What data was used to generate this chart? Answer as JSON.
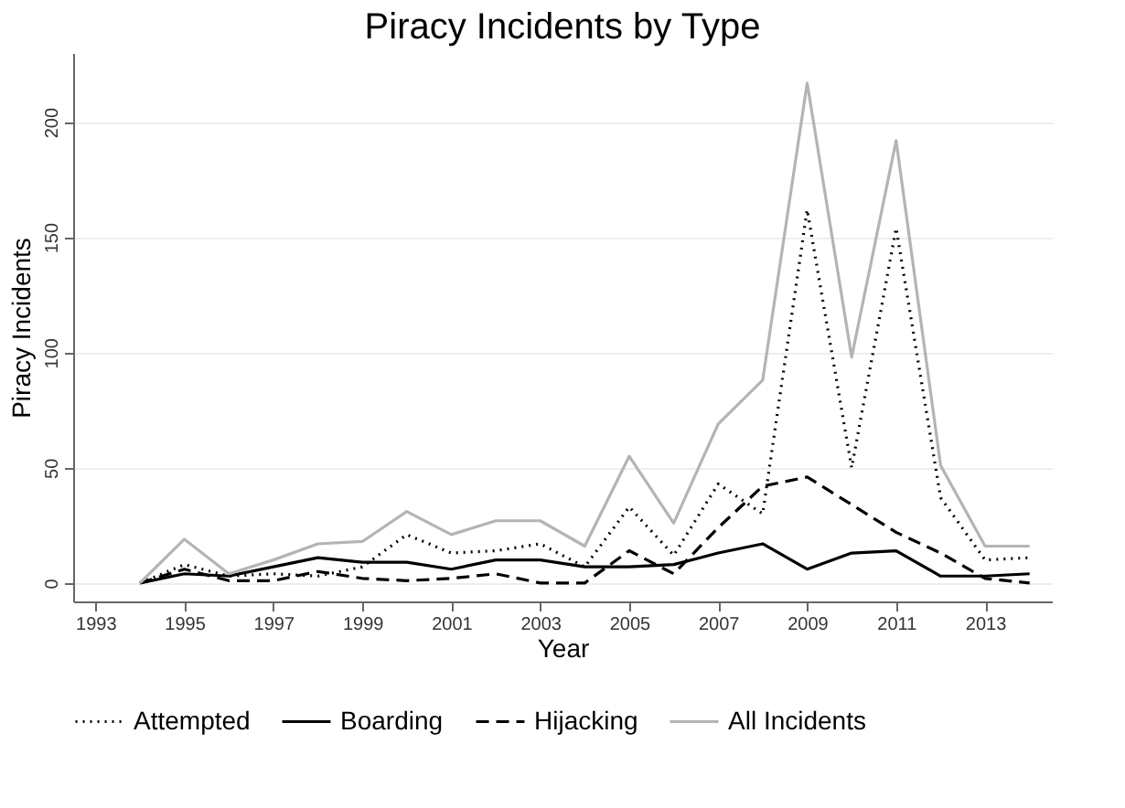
{
  "chart_data": {
    "type": "line",
    "title": "Piracy Incidents by Type",
    "xlabel": "Year",
    "ylabel": "Piracy Incidents",
    "x": [
      1994,
      1995,
      1996,
      1997,
      1998,
      1999,
      2000,
      2001,
      2002,
      2003,
      2004,
      2005,
      2006,
      2007,
      2008,
      2009,
      2010,
      2011,
      2012,
      2013,
      2014
    ],
    "series": [
      {
        "name": "Attempted",
        "color": "#000000",
        "line_style": "dotted",
        "values": [
          0,
          8,
          3,
          4,
          3,
          7,
          21,
          13,
          14,
          17,
          7,
          33,
          12,
          43,
          30,
          162,
          50,
          154,
          37,
          10,
          11
        ]
      },
      {
        "name": "Boarding",
        "color": "#000000",
        "line_style": "solid",
        "values": [
          0,
          4,
          3,
          7,
          11,
          9,
          9,
          6,
          10,
          10,
          7,
          7,
          8,
          13,
          17,
          6,
          13,
          14,
          3,
          3,
          4
        ]
      },
      {
        "name": "Hijacking",
        "color": "#000000",
        "line_style": "dashed",
        "values": [
          0,
          6,
          1,
          1,
          5,
          2,
          1,
          2,
          4,
          0,
          0,
          14,
          4,
          24,
          42,
          46,
          34,
          22,
          13,
          2,
          0
        ]
      },
      {
        "name": "All Incidents",
        "color": "#b4b4b4",
        "line_style": "solid",
        "values": [
          0,
          19,
          4,
          10,
          17,
          18,
          31,
          21,
          27,
          27,
          16,
          55,
          26,
          69,
          88,
          217,
          98,
          192,
          51,
          16,
          16
        ]
      }
    ],
    "xlim": [
      1992.5,
      2014.5
    ],
    "xticks": [
      1993,
      1995,
      1997,
      1999,
      2001,
      2003,
      2005,
      2007,
      2009,
      2011,
      2013
    ],
    "ylim": [
      -8,
      230
    ],
    "yticks": [
      0,
      50,
      100,
      150,
      200
    ],
    "grid": "y",
    "legend": "bottom",
    "marker": "none"
  }
}
